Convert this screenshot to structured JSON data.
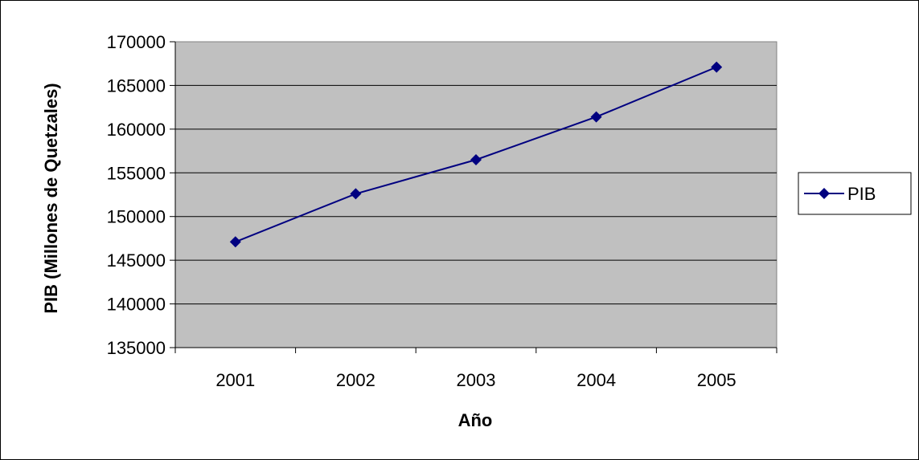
{
  "chart_data": {
    "type": "line",
    "title": "",
    "xlabel": "Año",
    "ylabel": "PIB (Millones de Quetzales)",
    "categories": [
      "2001",
      "2002",
      "2003",
      "2004",
      "2005"
    ],
    "series": [
      {
        "name": "PIB",
        "values": [
          147100,
          152600,
          156500,
          161400,
          167100
        ]
      }
    ],
    "ylim": [
      135000,
      170000
    ],
    "yticks": [
      "135000",
      "140000",
      "145000",
      "150000",
      "155000",
      "160000",
      "165000",
      "170000"
    ],
    "grid": "horizontal",
    "legend": "right",
    "colors": {
      "line": "#000080",
      "plot_bg": "#c0c0c0",
      "grid": "#000000"
    }
  }
}
